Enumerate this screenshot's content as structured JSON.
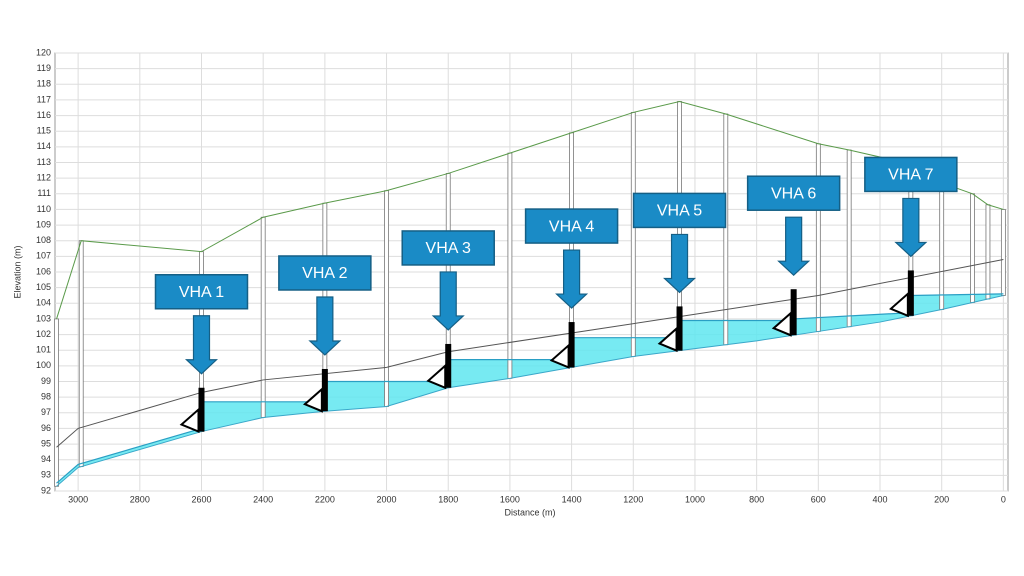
{
  "chart_data": {
    "type": "profile",
    "xlabel": "Distance (m)",
    "ylabel": "Elevation (m)",
    "xlim": [
      3075,
      -15
    ],
    "ylim": [
      92,
      120
    ],
    "xticks": [
      0,
      200,
      400,
      600,
      800,
      1000,
      1200,
      1400,
      1600,
      1800,
      2000,
      2200,
      2400,
      2600,
      2800,
      3000
    ],
    "yticks": [
      92,
      93,
      94,
      95,
      96,
      97,
      98,
      99,
      100,
      101,
      102,
      103,
      104,
      105,
      106,
      107,
      108,
      109,
      110,
      111,
      112,
      113,
      114,
      115,
      116,
      117,
      118,
      119,
      120
    ],
    "grid": true,
    "series": [
      {
        "color": "#5a9a4a",
        "x": [
          3070,
          2990,
          2600,
          2400,
          2200,
          2000,
          1800,
          1600,
          1400,
          1200,
          1050,
          900,
          600,
          500,
          300,
          200,
          100,
          50,
          0
        ],
        "values": [
          103,
          108,
          107.3,
          109.5,
          110.4,
          111.2,
          112.3,
          113.6,
          114.9,
          116.2,
          116.9,
          116.1,
          114.2,
          113.8,
          112.9,
          111.7,
          111,
          110.3,
          110
        ]
      },
      {
        "color": "#555555",
        "x": [
          3070,
          3000,
          2600,
          2400,
          2000,
          1800,
          1000,
          600,
          0
        ],
        "values": [
          94.8,
          96,
          98.3,
          99.1,
          99.9,
          100.9,
          103.3,
          104.5,
          106.8
        ]
      },
      {
        "color": "#3aa7c9",
        "x": [
          3070,
          3000,
          2600,
          2400,
          2200,
          2000,
          1800,
          1600,
          1400,
          1200,
          1000,
          800,
          600,
          400,
          200,
          0
        ],
        "values": [
          92.3,
          93.5,
          95.8,
          96.7,
          97.1,
          97.4,
          98.6,
          99.2,
          99.9,
          100.6,
          101.1,
          101.6,
          102.2,
          102.8,
          103.6,
          104.5
        ]
      },
      {
        "color": "#2a9fc4",
        "fill": "#5fe6f0",
        "x": [
          3070,
          3000,
          2600,
          2600,
          2200,
          2200,
          2000,
          1800,
          1800,
          1400,
          1400,
          1050,
          1050,
          680,
          680,
          300,
          300,
          0
        ],
        "values": [
          92.5,
          93.7,
          96.0,
          97.7,
          97.7,
          99.0,
          99.0,
          99.0,
          100.4,
          100.4,
          101.8,
          101.8,
          102.9,
          102.9,
          103.0,
          103.4,
          104.5,
          104.6
        ]
      }
    ],
    "weirs": [
      {
        "label": "VHA 1",
        "x": 2600,
        "crest": 98.6
      },
      {
        "label": "VHA 2",
        "x": 2200,
        "crest": 99.8
      },
      {
        "label": "VHA 3",
        "x": 1800,
        "crest": 101.4
      },
      {
        "label": "VHA 4",
        "x": 1400,
        "crest": 102.8
      },
      {
        "label": "VHA 5",
        "x": 1050,
        "crest": 103.8
      },
      {
        "label": "VHA 6",
        "x": 680,
        "crest": 104.9
      },
      {
        "label": "VHA 7",
        "x": 300,
        "crest": 106.1
      }
    ]
  }
}
